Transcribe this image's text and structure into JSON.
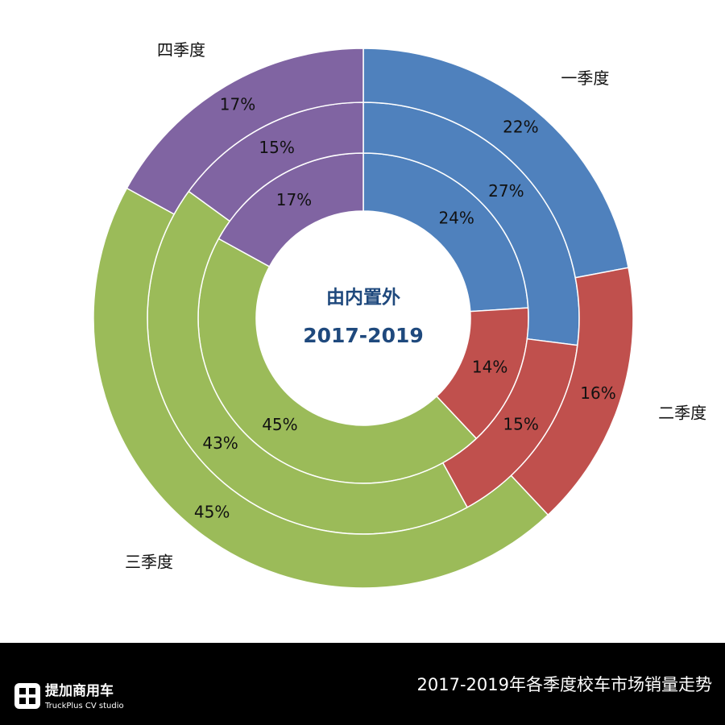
{
  "chart_data": {
    "type": "pie",
    "title": "2017-2019年各季度校车市场销量走势",
    "center_text": [
      "由内置外",
      "2017-2019"
    ],
    "categories": [
      "一季度",
      "二季度",
      "三季度",
      "四季度"
    ],
    "colors": [
      "#4f81bd",
      "#c0504d",
      "#9bbb59",
      "#8064a2"
    ],
    "series": [
      {
        "values": [
          24,
          14,
          45,
          17
        ],
        "value_labels": [
          "24%",
          "14%",
          "45%",
          "17%"
        ]
      },
      {
        "values": [
          27,
          15,
          43,
          15
        ],
        "value_labels": [
          "27%",
          "15%",
          "43%",
          "15%"
        ]
      },
      {
        "values": [
          22,
          16,
          45,
          17
        ],
        "value_labels": [
          "22%",
          "16%",
          "45%",
          "17%"
        ]
      }
    ]
  },
  "footer": {
    "logo": "提加商用车",
    "logo_sub": "TruckPlus CV studio"
  }
}
